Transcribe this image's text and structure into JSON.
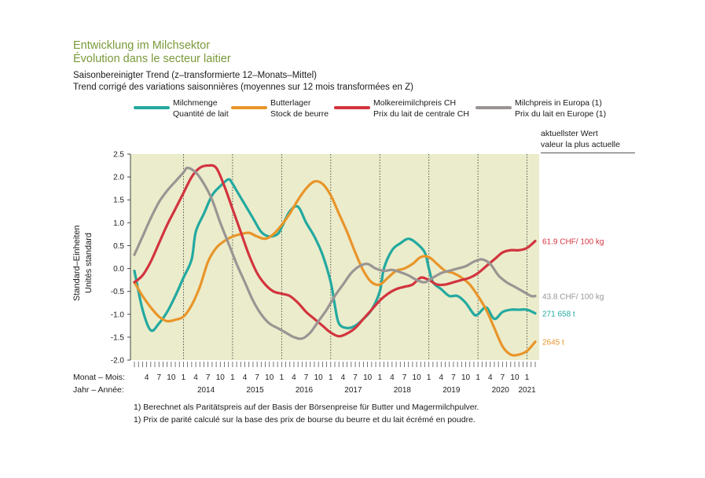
{
  "header": {
    "title_de": "Entwicklung im Milchsektor",
    "title_fr": "Évolution dans le secteur laitier",
    "subtitle_de": "Saisonbereinigter Trend (z–transformierte 12–Monats–Mittel)",
    "subtitle_fr": "Trend corrigé des variations saisonnières (moyennes sur 12 mois transformées en Z)"
  },
  "legend": [
    {
      "line1": "Milchmenge",
      "line2": "Quantité de lait",
      "color": "#23a9a0"
    },
    {
      "line1": "Butterlager",
      "line2": "Stock de beurre",
      "color": "#e8952a"
    },
    {
      "line1": "Molkereimilchpreis CH",
      "line2": "Prix du lait de centrale CH",
      "color": "#d2343f"
    },
    {
      "line1": "Milchpreis in Europa (1)",
      "line2": "Prix du lait en Europe (1)",
      "color": "#9a9593"
    }
  ],
  "right_note": {
    "line1": "aktuellster Wert",
    "line2": "valeur la plus actuelle"
  },
  "y_axis_label": {
    "de": "Standard–Einheiten",
    "fr": "Unités standard"
  },
  "x_axis_labels": {
    "month": "Monat – Mois:",
    "year": "Jahr – Année:"
  },
  "footnotes": [
    "1)  Berechnet als Paritätspreis auf der Basis der Börsenpreise für Butter und Magermilchpulver.",
    "1)  Prix de parité calculé sur la base des prix de bourse du beurre et du lait écrémé en poudre."
  ],
  "chart_data": {
    "type": "line",
    "background": "#ebeccb",
    "ylim": [
      -2.0,
      2.5
    ],
    "yticks": [
      "2.5",
      "2.0",
      "1.5",
      "1.0",
      "0.5",
      "0.0",
      "-0.5",
      "-1.0",
      "-1.5",
      "-2.0"
    ],
    "x_start": "2013-01",
    "x_end": "2021-03",
    "month_ticks": [
      "4",
      "7",
      "10",
      "1"
    ],
    "years": [
      "2014",
      "2015",
      "2016",
      "2017",
      "2018",
      "2019",
      "2020",
      "2021"
    ],
    "grid": "dotted vertical at January",
    "series": [
      {
        "name": "Milchmenge",
        "color": "#23a9a0",
        "end_label": "271 658 t",
        "points": [
          [
            "2013-01",
            -0.05
          ],
          [
            "2013-03",
            -0.9
          ],
          [
            "2013-05",
            -1.35
          ],
          [
            "2013-07",
            -1.2
          ],
          [
            "2013-09",
            -0.95
          ],
          [
            "2013-11",
            -0.6
          ],
          [
            "2014-01",
            -0.2
          ],
          [
            "2014-03",
            0.2
          ],
          [
            "2014-04",
            0.8
          ],
          [
            "2014-06",
            1.2
          ],
          [
            "2014-08",
            1.6
          ],
          [
            "2014-10",
            1.8
          ],
          [
            "2014-12",
            1.95
          ],
          [
            "2015-01",
            1.85
          ],
          [
            "2015-02",
            1.7
          ],
          [
            "2015-04",
            1.4
          ],
          [
            "2015-06",
            1.1
          ],
          [
            "2015-08",
            0.8
          ],
          [
            "2015-10",
            0.7
          ],
          [
            "2015-12",
            0.75
          ],
          [
            "2016-01",
            0.9
          ],
          [
            "2016-03",
            1.25
          ],
          [
            "2016-05",
            1.35
          ],
          [
            "2016-07",
            1.0
          ],
          [
            "2016-09",
            0.7
          ],
          [
            "2016-11",
            0.3
          ],
          [
            "2017-01",
            -0.3
          ],
          [
            "2017-02",
            -0.8
          ],
          [
            "2017-03",
            -1.2
          ],
          [
            "2017-05",
            -1.3
          ],
          [
            "2017-07",
            -1.25
          ],
          [
            "2017-09",
            -1.1
          ],
          [
            "2017-11",
            -0.9
          ],
          [
            "2018-01",
            -0.5
          ],
          [
            "2018-02",
            0.0
          ],
          [
            "2018-04",
            0.4
          ],
          [
            "2018-06",
            0.55
          ],
          [
            "2018-08",
            0.65
          ],
          [
            "2018-10",
            0.55
          ],
          [
            "2018-12",
            0.35
          ],
          [
            "2019-01",
            0.0
          ],
          [
            "2019-02",
            -0.3
          ],
          [
            "2019-04",
            -0.45
          ],
          [
            "2019-06",
            -0.6
          ],
          [
            "2019-08",
            -0.6
          ],
          [
            "2019-10",
            -0.75
          ],
          [
            "2019-12",
            -1.0
          ],
          [
            "2020-01",
            -1.0
          ],
          [
            "2020-03",
            -0.85
          ],
          [
            "2020-05",
            -1.1
          ],
          [
            "2020-07",
            -0.95
          ],
          [
            "2020-09",
            -0.9
          ],
          [
            "2020-11",
            -0.9
          ],
          [
            "2021-01",
            -0.9
          ],
          [
            "2021-03",
            -0.98
          ]
        ]
      },
      {
        "name": "Butterlager",
        "color": "#e8952a",
        "end_label": "2645 t",
        "points": [
          [
            "2013-01",
            -0.3
          ],
          [
            "2013-03",
            -0.6
          ],
          [
            "2013-05",
            -0.85
          ],
          [
            "2013-07",
            -1.05
          ],
          [
            "2013-09",
            -1.15
          ],
          [
            "2013-11",
            -1.12
          ],
          [
            "2014-01",
            -1.05
          ],
          [
            "2014-03",
            -0.8
          ],
          [
            "2014-05",
            -0.4
          ],
          [
            "2014-07",
            0.15
          ],
          [
            "2014-09",
            0.45
          ],
          [
            "2014-11",
            0.6
          ],
          [
            "2015-01",
            0.7
          ],
          [
            "2015-03",
            0.75
          ],
          [
            "2015-05",
            0.78
          ],
          [
            "2015-07",
            0.7
          ],
          [
            "2015-09",
            0.65
          ],
          [
            "2015-11",
            0.75
          ],
          [
            "2016-01",
            0.95
          ],
          [
            "2016-03",
            1.2
          ],
          [
            "2016-05",
            1.5
          ],
          [
            "2016-07",
            1.75
          ],
          [
            "2016-09",
            1.9
          ],
          [
            "2016-11",
            1.85
          ],
          [
            "2017-01",
            1.6
          ],
          [
            "2017-03",
            1.2
          ],
          [
            "2017-05",
            0.8
          ],
          [
            "2017-07",
            0.35
          ],
          [
            "2017-09",
            -0.05
          ],
          [
            "2017-11",
            -0.3
          ],
          [
            "2018-01",
            -0.35
          ],
          [
            "2018-03",
            -0.2
          ],
          [
            "2018-05",
            -0.05
          ],
          [
            "2018-07",
            0.0
          ],
          [
            "2018-09",
            0.1
          ],
          [
            "2018-11",
            0.25
          ],
          [
            "2019-01",
            0.25
          ],
          [
            "2019-03",
            0.1
          ],
          [
            "2019-05",
            -0.05
          ],
          [
            "2019-07",
            -0.1
          ],
          [
            "2019-09",
            -0.2
          ],
          [
            "2019-11",
            -0.35
          ],
          [
            "2020-01",
            -0.6
          ],
          [
            "2020-03",
            -0.9
          ],
          [
            "2020-05",
            -1.3
          ],
          [
            "2020-07",
            -1.7
          ],
          [
            "2020-09",
            -1.88
          ],
          [
            "2020-11",
            -1.88
          ],
          [
            "2021-01",
            -1.8
          ],
          [
            "2021-03",
            -1.6
          ]
        ]
      },
      {
        "name": "Molkereimilchpreis CH",
        "color": "#d2343f",
        "end_label": "61.9 CHF/ 100 kg",
        "points": [
          [
            "2013-01",
            -0.3
          ],
          [
            "2013-03",
            -0.15
          ],
          [
            "2013-05",
            0.15
          ],
          [
            "2013-07",
            0.55
          ],
          [
            "2013-09",
            0.95
          ],
          [
            "2013-11",
            1.3
          ],
          [
            "2014-01",
            1.65
          ],
          [
            "2014-03",
            2.0
          ],
          [
            "2014-05",
            2.2
          ],
          [
            "2014-07",
            2.25
          ],
          [
            "2014-09",
            2.2
          ],
          [
            "2014-11",
            1.8
          ],
          [
            "2015-01",
            1.3
          ],
          [
            "2015-03",
            0.8
          ],
          [
            "2015-05",
            0.3
          ],
          [
            "2015-07",
            -0.1
          ],
          [
            "2015-09",
            -0.35
          ],
          [
            "2015-11",
            -0.5
          ],
          [
            "2016-01",
            -0.55
          ],
          [
            "2016-03",
            -0.6
          ],
          [
            "2016-05",
            -0.75
          ],
          [
            "2016-07",
            -0.95
          ],
          [
            "2016-09",
            -1.1
          ],
          [
            "2016-11",
            -1.25
          ],
          [
            "2017-01",
            -1.4
          ],
          [
            "2017-03",
            -1.48
          ],
          [
            "2017-05",
            -1.42
          ],
          [
            "2017-07",
            -1.3
          ],
          [
            "2017-09",
            -1.1
          ],
          [
            "2017-11",
            -0.9
          ],
          [
            "2018-01",
            -0.7
          ],
          [
            "2018-03",
            -0.55
          ],
          [
            "2018-05",
            -0.45
          ],
          [
            "2018-07",
            -0.4
          ],
          [
            "2018-09",
            -0.35
          ],
          [
            "2018-11",
            -0.2
          ],
          [
            "2019-01",
            -0.25
          ],
          [
            "2019-03",
            -0.35
          ],
          [
            "2019-05",
            -0.35
          ],
          [
            "2019-07",
            -0.3
          ],
          [
            "2019-09",
            -0.25
          ],
          [
            "2019-11",
            -0.2
          ],
          [
            "2020-01",
            -0.1
          ],
          [
            "2020-03",
            0.05
          ],
          [
            "2020-05",
            0.2
          ],
          [
            "2020-07",
            0.35
          ],
          [
            "2020-09",
            0.4
          ],
          [
            "2020-11",
            0.4
          ],
          [
            "2021-01",
            0.45
          ],
          [
            "2021-03",
            0.6
          ]
        ]
      },
      {
        "name": "Milchpreis in Europa (1)",
        "color": "#9a9593",
        "end_label": "43.8 CHF/ 100 kg",
        "points": [
          [
            "2013-01",
            0.3
          ],
          [
            "2013-03",
            0.7
          ],
          [
            "2013-05",
            1.1
          ],
          [
            "2013-07",
            1.45
          ],
          [
            "2013-09",
            1.7
          ],
          [
            "2013-11",
            1.9
          ],
          [
            "2014-01",
            2.1
          ],
          [
            "2014-02",
            2.2
          ],
          [
            "2014-04",
            2.1
          ],
          [
            "2014-06",
            1.85
          ],
          [
            "2014-08",
            1.5
          ],
          [
            "2014-10",
            1.0
          ],
          [
            "2014-12",
            0.55
          ],
          [
            "2015-02",
            0.1
          ],
          [
            "2015-04",
            -0.3
          ],
          [
            "2015-06",
            -0.7
          ],
          [
            "2015-08",
            -1.0
          ],
          [
            "2015-10",
            -1.2
          ],
          [
            "2015-12",
            -1.3
          ],
          [
            "2016-02",
            -1.4
          ],
          [
            "2016-04",
            -1.5
          ],
          [
            "2016-06",
            -1.53
          ],
          [
            "2016-08",
            -1.4
          ],
          [
            "2016-10",
            -1.15
          ],
          [
            "2016-12",
            -0.9
          ],
          [
            "2017-02",
            -0.6
          ],
          [
            "2017-04",
            -0.35
          ],
          [
            "2017-06",
            -0.1
          ],
          [
            "2017-08",
            0.05
          ],
          [
            "2017-10",
            0.1
          ],
          [
            "2017-12",
            0.0
          ],
          [
            "2018-02",
            -0.05
          ],
          [
            "2018-04",
            -0.03
          ],
          [
            "2018-06",
            -0.08
          ],
          [
            "2018-08",
            -0.15
          ],
          [
            "2018-10",
            -0.25
          ],
          [
            "2018-12",
            -0.3
          ],
          [
            "2019-02",
            -0.2
          ],
          [
            "2019-04",
            -0.1
          ],
          [
            "2019-06",
            -0.05
          ],
          [
            "2019-08",
            0.0
          ],
          [
            "2019-10",
            0.05
          ],
          [
            "2019-12",
            0.15
          ],
          [
            "2020-02",
            0.2
          ],
          [
            "2020-04",
            0.1
          ],
          [
            "2020-06",
            -0.15
          ],
          [
            "2020-08",
            -0.3
          ],
          [
            "2020-10",
            -0.4
          ],
          [
            "2020-12",
            -0.5
          ],
          [
            "2021-02",
            -0.6
          ],
          [
            "2021-03",
            -0.6
          ]
        ]
      }
    ]
  }
}
